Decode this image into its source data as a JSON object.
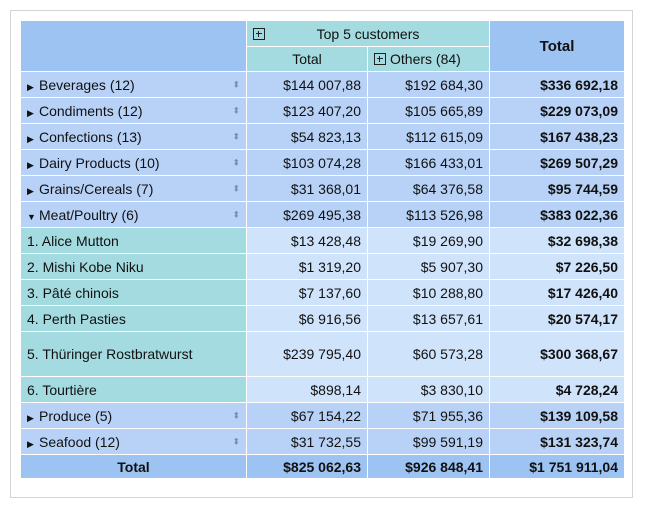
{
  "header": {
    "top_group_label": "Top 5 customers",
    "total_col_label": "Total",
    "others_label": "Others (84)",
    "grand_total_label": "Total"
  },
  "rows": [
    {
      "label": "Beverages (12)",
      "total": "$144 007,88",
      "others": "$192 684,30",
      "grand": "$336 692,18"
    },
    {
      "label": "Condiments (12)",
      "total": "$123 407,20",
      "others": "$105 665,89",
      "grand": "$229 073,09"
    },
    {
      "label": "Confections (13)",
      "total": "$54 823,13",
      "others": "$112 615,09",
      "grand": "$167 438,23"
    },
    {
      "label": "Dairy Products (10)",
      "total": "$103 074,28",
      "others": "$166 433,01",
      "grand": "$269 507,29"
    },
    {
      "label": "Grains/Cereals (7)",
      "total": "$31 368,01",
      "others": "$64 376,58",
      "grand": "$95 744,59"
    },
    {
      "label": "Meat/Poultry (6)",
      "total": "$269 495,38",
      "others": "$113 526,98",
      "grand": "$383 022,36"
    }
  ],
  "meat_children": [
    {
      "label": "1. Alice Mutton",
      "total": "$13 428,48",
      "others": "$19 269,90",
      "grand": "$32 698,38"
    },
    {
      "label": "2. Mishi Kobe Niku",
      "total": "$1 319,20",
      "others": "$5 907,30",
      "grand": "$7 226,50"
    },
    {
      "label": "3. Pâté chinois",
      "total": "$7 137,60",
      "others": "$10 288,80",
      "grand": "$17 426,40"
    },
    {
      "label": "4. Perth Pasties",
      "total": "$6 916,56",
      "others": "$13 657,61",
      "grand": "$20 574,17"
    },
    {
      "label": "5. Thüringer Rostbratwurst",
      "total": "$239 795,40",
      "others": "$60 573,28",
      "grand": "$300 368,67"
    },
    {
      "label": "6. Tourtière",
      "total": "$898,14",
      "others": "$3 830,10",
      "grand": "$4 728,24"
    }
  ],
  "rows_after": [
    {
      "label": "Produce (5)",
      "total": "$67 154,22",
      "others": "$71 955,36",
      "grand": "$139 109,58"
    },
    {
      "label": "Seafood (12)",
      "total": "$31 732,55",
      "others": "$99 591,19",
      "grand": "$131 323,74"
    }
  ],
  "footer": {
    "label": "Total",
    "total": "$825 062,63",
    "others": "$926 848,41",
    "grand": "$1 751 911,04"
  },
  "icons": {
    "collapsed": "triangle-right",
    "expanded": "triangle-down",
    "sort": "sort-updown",
    "expand": "plus-box"
  }
}
